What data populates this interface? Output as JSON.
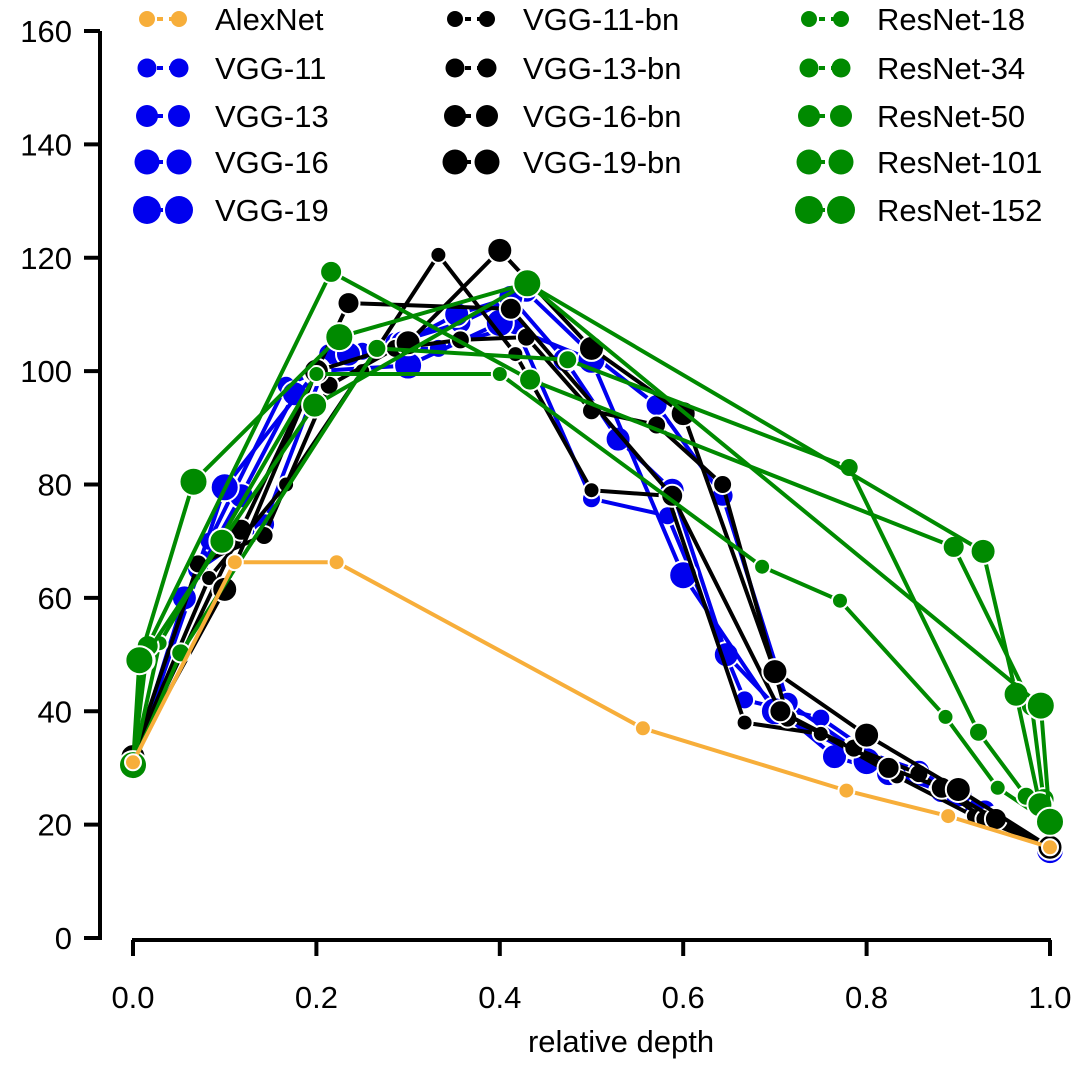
{
  "chart_data": {
    "type": "line",
    "title": "",
    "xlabel": "relative depth",
    "ylabel": "",
    "xlim": [
      0.0,
      1.0
    ],
    "ylim": [
      0,
      160
    ],
    "x_ticks": [
      "0.0",
      "0.2",
      "0.4",
      "0.6",
      "0.8",
      "1.0"
    ],
    "y_ticks": [
      "0",
      "20",
      "40",
      "60",
      "80",
      "100",
      "120",
      "140",
      "160"
    ],
    "grid": false,
    "legend_placement": "top",
    "series": [
      {
        "name": "AlexNet",
        "color": "#f7ae3a",
        "size": 1,
        "x": [
          0.0,
          0.111,
          0.222,
          0.556,
          0.778,
          0.889,
          1.0
        ],
        "y": [
          31,
          66.3,
          66.3,
          37,
          26,
          21.5,
          16
        ]
      },
      {
        "name": "VGG-11",
        "color": "#0000ee",
        "size": 2,
        "x": [
          0.0,
          0.083,
          0.167,
          0.25,
          0.333,
          0.417,
          0.5,
          0.583,
          0.667,
          0.75,
          0.833,
          0.917,
          1.0
        ],
        "y": [
          31,
          70,
          97.5,
          103.5,
          104,
          108,
          77.5,
          74.5,
          42,
          38.8,
          29.5,
          22.8,
          15.5
        ]
      },
      {
        "name": "VGG-13",
        "color": "#0000ee",
        "size": 3,
        "x": [
          0.0,
          0.071,
          0.143,
          0.214,
          0.286,
          0.357,
          0.429,
          0.5,
          0.571,
          0.643,
          0.714,
          0.786,
          0.857,
          0.929,
          1.0
        ],
        "y": [
          31,
          65,
          73,
          103,
          105,
          108.5,
          114,
          103,
          94,
          78,
          41.5,
          33.5,
          29.5,
          22.5,
          15.5
        ]
      },
      {
        "name": "VGG-16",
        "color": "#0000ee",
        "size": 4,
        "x": [
          0.0,
          0.056,
          0.118,
          0.176,
          0.235,
          0.294,
          0.353,
          0.412,
          0.471,
          0.529,
          0.588,
          0.647,
          0.706,
          0.765,
          0.824,
          0.882,
          0.941,
          1.0
        ],
        "y": [
          31,
          60,
          78,
          96,
          103,
          105,
          110,
          113,
          102,
          88,
          79,
          50,
          40,
          32,
          29,
          26,
          21,
          15.5
        ]
      },
      {
        "name": "VGG-19",
        "color": "#0000ee",
        "size": 5,
        "x": [
          0.0,
          0.1,
          0.2,
          0.3,
          0.4,
          0.5,
          0.6,
          0.7,
          0.8,
          0.9,
          1.0
        ],
        "y": [
          31,
          79.5,
          100,
          101,
          108.5,
          102,
          64,
          40,
          31.2,
          25.5,
          15.5
        ]
      },
      {
        "name": "VGG-11-bn",
        "color": "#000000",
        "size": 1,
        "x": [
          0.0,
          0.083,
          0.167,
          0.25,
          0.333,
          0.417,
          0.5,
          0.583,
          0.667,
          0.75,
          0.833,
          0.917,
          1.0
        ],
        "y": [
          32,
          63.5,
          80,
          100,
          120.5,
          103,
          79,
          78,
          38,
          36,
          28.5,
          21.5,
          16
        ]
      },
      {
        "name": "VGG-13-bn",
        "color": "#000000",
        "size": 2,
        "x": [
          0.0,
          0.071,
          0.143,
          0.214,
          0.286,
          0.357,
          0.429,
          0.5,
          0.571,
          0.643,
          0.714,
          0.786,
          0.857,
          0.929,
          1.0
        ],
        "y": [
          32,
          66,
          71,
          97.5,
          104,
          105.5,
          106,
          93,
          90.5,
          80,
          38.8,
          33.5,
          29,
          21,
          16
        ]
      },
      {
        "name": "VGG-16-bn",
        "color": "#000000",
        "size": 3,
        "x": [
          0.0,
          0.118,
          0.235,
          0.412,
          0.588,
          0.706,
          0.824,
          0.882,
          0.941,
          1.0
        ],
        "y": [
          32,
          72,
          112,
          111,
          78,
          40,
          30,
          26.5,
          21,
          16
        ]
      },
      {
        "name": "VGG-19-bn",
        "color": "#000000",
        "size": 4,
        "x": [
          0.0,
          0.1,
          0.2,
          0.3,
          0.4,
          0.5,
          0.6,
          0.7,
          0.8,
          0.9,
          1.0
        ],
        "y": [
          32,
          61.5,
          100,
          105,
          121.3,
          104,
          92.5,
          47,
          35.8,
          26.2,
          16
        ]
      },
      {
        "name": "ResNet-18",
        "color": "#008a00",
        "size": 1,
        "x": [
          0.0,
          0.029,
          0.2,
          0.4,
          0.686,
          0.771,
          0.886,
          0.943,
          1.0
        ],
        "y": [
          30.5,
          52,
          99.5,
          99.5,
          65.5,
          59.5,
          39,
          26.5,
          20.3
        ]
      },
      {
        "name": "ResNet-34",
        "color": "#008a00",
        "size": 2,
        "x": [
          0.0,
          0.052,
          0.266,
          0.474,
          0.781,
          0.922,
          0.974,
          1.0
        ],
        "y": [
          30.5,
          50.3,
          104,
          102,
          83,
          36.3,
          25,
          20.5
        ]
      },
      {
        "name": "ResNet-50",
        "color": "#008a00",
        "size": 3,
        "x": [
          0.0,
          0.016,
          0.216,
          0.433,
          0.895,
          0.98,
          0.993,
          1.0
        ],
        "y": [
          30.5,
          51.5,
          117.5,
          98.5,
          69,
          41,
          24.5,
          20.5
        ]
      },
      {
        "name": "ResNet-101",
        "color": "#008a00",
        "size": 4,
        "x": [
          0.0,
          0.01,
          0.097,
          0.198,
          0.43,
          0.927,
          0.963,
          0.989,
          1.0
        ],
        "y": [
          30.5,
          49,
          70,
          94,
          115.5,
          68.2,
          43,
          23.5,
          20.5
        ]
      },
      {
        "name": "ResNet-152",
        "color": "#008a00",
        "size": 5,
        "x": [
          0.0,
          0.007,
          0.066,
          0.225,
          0.43,
          0.99,
          1.0
        ],
        "y": [
          30.5,
          49,
          80.5,
          106,
          115.5,
          41,
          20.5
        ]
      }
    ]
  }
}
